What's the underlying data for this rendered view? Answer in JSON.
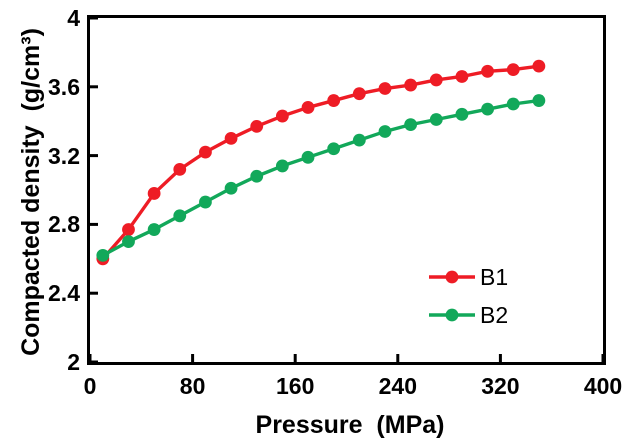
{
  "figure": {
    "background": "#ffffff",
    "axis_color": "#000000"
  },
  "chart_data": {
    "type": "line",
    "title": "",
    "xlabel": "Pressure  (MPa)",
    "ylabel": "Compacted density  (g/cm³)",
    "xlim": [
      0,
      400
    ],
    "ylim": [
      2,
      4
    ],
    "x_ticks": [
      0,
      80,
      160,
      240,
      320,
      400
    ],
    "x_tick_labels": [
      "0",
      "80",
      "160",
      "240",
      "320",
      "400"
    ],
    "y_ticks": [
      2,
      2.4,
      2.8,
      3.2,
      3.6,
      4
    ],
    "y_tick_labels": [
      "2",
      "2.4",
      "2.8",
      "3.2",
      "3.6",
      "4"
    ],
    "grid": false,
    "legend_position": "inside-lower-right",
    "marker": "circle",
    "x": [
      10,
      30,
      50,
      70,
      90,
      110,
      130,
      150,
      170,
      190,
      210,
      230,
      250,
      270,
      290,
      310,
      330,
      350
    ],
    "series": [
      {
        "name": "B1",
        "color": "#ee1c25",
        "values": [
          2.6,
          2.77,
          2.98,
          3.12,
          3.22,
          3.3,
          3.37,
          3.43,
          3.48,
          3.52,
          3.56,
          3.59,
          3.61,
          3.64,
          3.66,
          3.69,
          3.7,
          3.72
        ]
      },
      {
        "name": "B2",
        "color": "#12a85a",
        "values": [
          2.62,
          2.7,
          2.77,
          2.85,
          2.93,
          3.01,
          3.08,
          3.14,
          3.19,
          3.24,
          3.29,
          3.34,
          3.38,
          3.41,
          3.44,
          3.47,
          3.5,
          3.52
        ]
      }
    ]
  }
}
